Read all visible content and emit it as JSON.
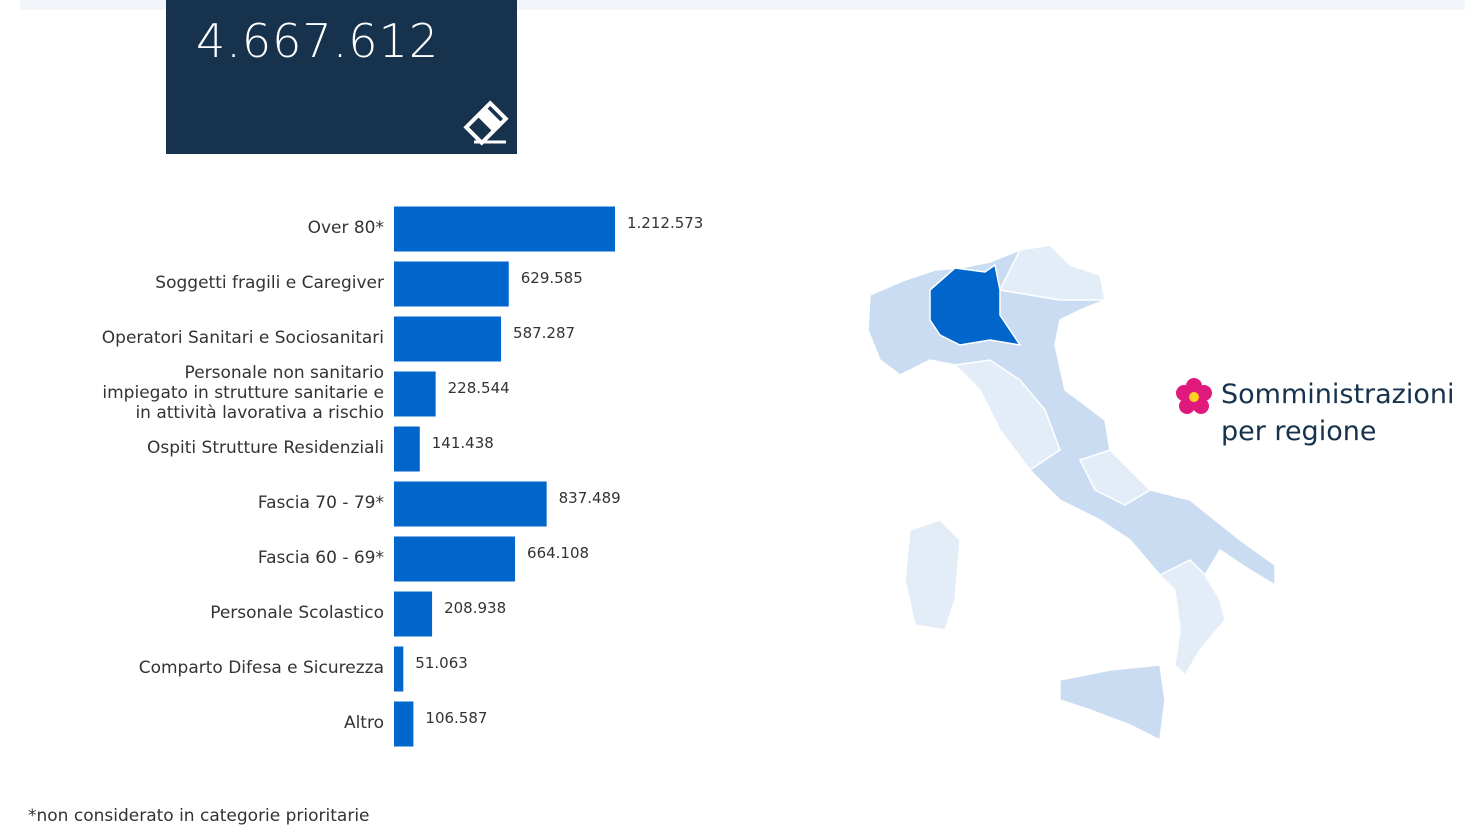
{
  "header": {
    "total": "4.667.612"
  },
  "chart_data": {
    "type": "bar",
    "orientation": "horizontal",
    "categories": [
      "Over 80*",
      "Soggetti fragili e Caregiver",
      "Operatori Sanitari e Sociosanitari",
      "Personale non sanitario impiegato in strutture sanitarie e in attività lavorativa a rischio",
      "Ospiti Strutture Residenziali",
      "Fascia 70 - 79*",
      "Fascia 60 - 69*",
      "Personale Scolastico",
      "Comparto Difesa e Sicurezza",
      "Altro"
    ],
    "values": [
      1212573,
      629585,
      587287,
      228544,
      141438,
      837489,
      664108,
      208938,
      51063,
      106587
    ],
    "value_labels": [
      "1.212.573",
      "629.585",
      "587.287",
      "228.544",
      "141.438",
      "837.489",
      "664.108",
      "208.938",
      "51.063",
      "106.587"
    ],
    "color": "#0066cc"
  },
  "map": {
    "title": "Somministrazioni per regione"
  },
  "footnote": "*non considerato in categorie prioritarie"
}
